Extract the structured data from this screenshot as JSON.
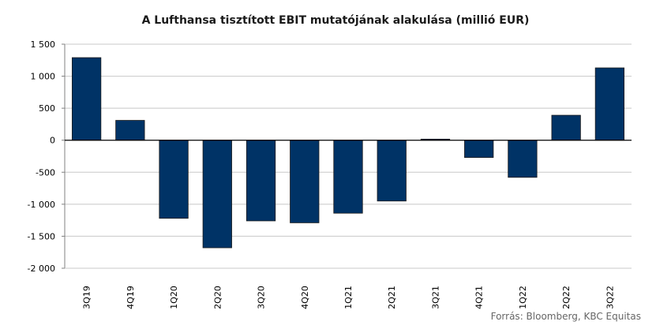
{
  "chart_data": {
    "type": "bar",
    "title": "A Lufthansa tisztított EBIT mutatójának alakulása (millió EUR)",
    "categories": [
      "3Q19",
      "4Q19",
      "1Q20",
      "2Q20",
      "3Q20",
      "4Q20",
      "1Q21",
      "2Q21",
      "3Q21",
      "4Q21",
      "1Q22",
      "2Q22",
      "3Q22"
    ],
    "values": [
      1290,
      310,
      -1220,
      -1680,
      -1260,
      -1290,
      -1140,
      -950,
      17,
      -270,
      -580,
      390,
      1130
    ],
    "ylim": [
      -2000,
      1500
    ],
    "yticks": [
      1500,
      1000,
      500,
      0,
      -500,
      -1000,
      -1500,
      -2000
    ],
    "ytick_labels": [
      "1 500",
      "1 000",
      "500",
      "0",
      "-500",
      "-1 000",
      "-1 500",
      "-2 000"
    ],
    "grid": true,
    "xlabel": "",
    "ylabel": "",
    "bar_color": "#003366"
  },
  "source_text": "Forrás: Bloomberg,  KBC Equitas"
}
